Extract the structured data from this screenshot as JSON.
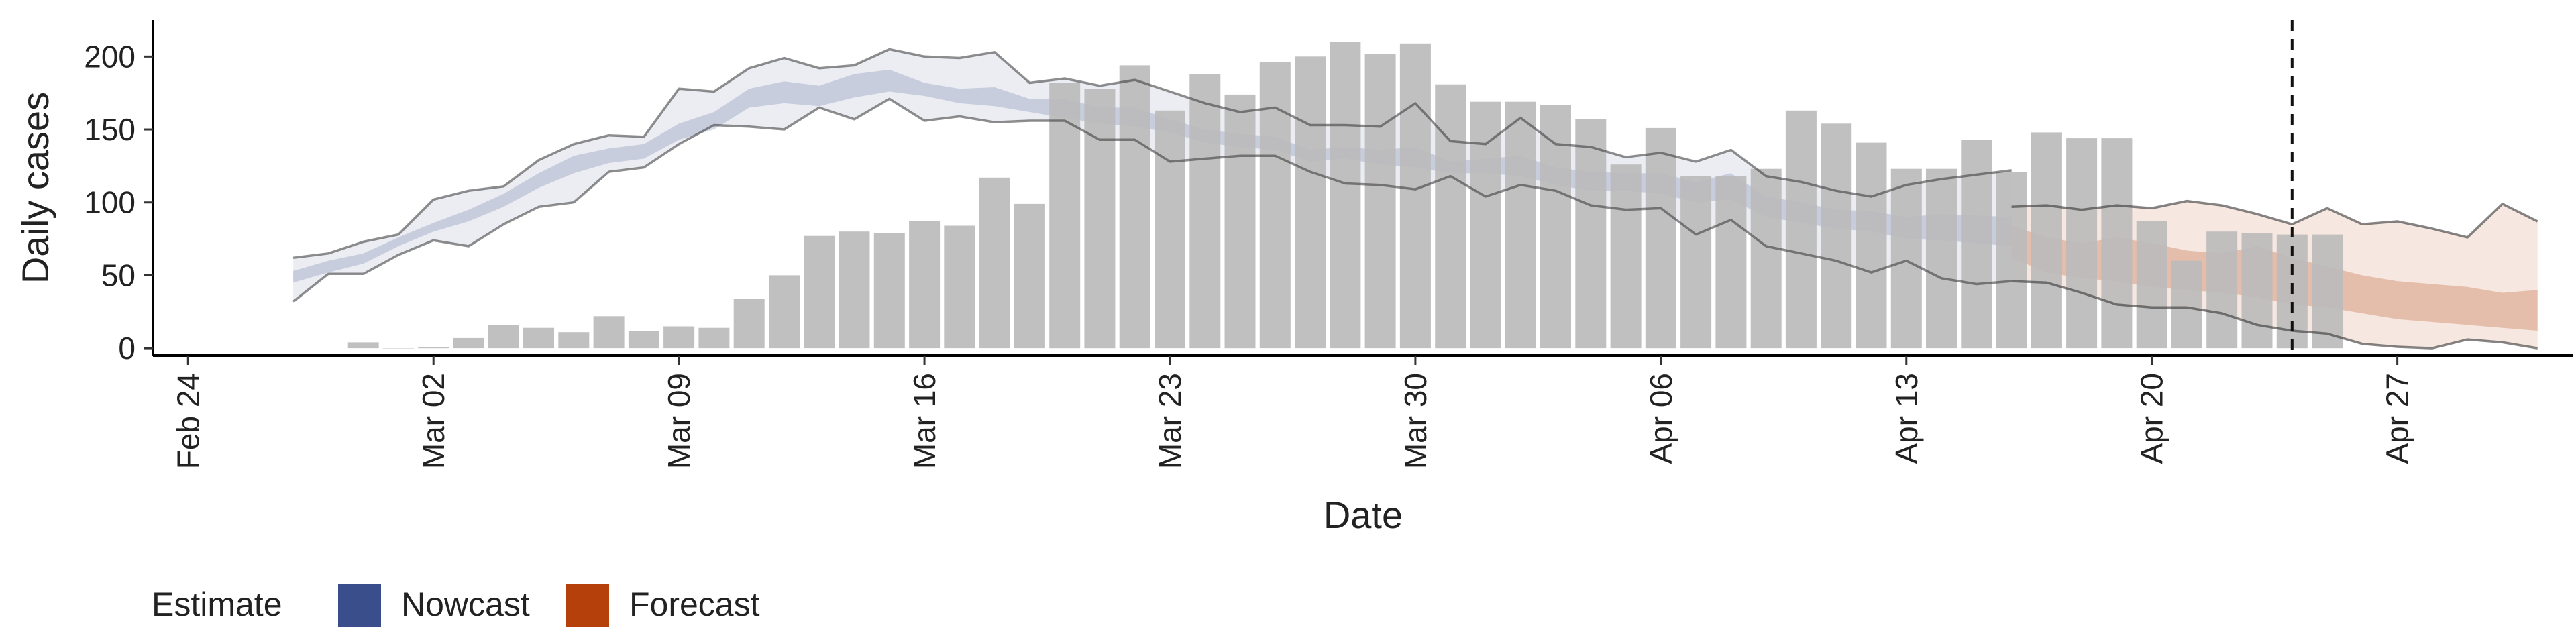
{
  "chart_data": {
    "type": "bar",
    "title": "",
    "xlabel": "Date",
    "ylabel": "Daily cases",
    "ylim": [
      -5,
      225
    ],
    "y_ticks": [
      0,
      50,
      100,
      150,
      200
    ],
    "x_range": [
      "2020-02-23",
      "2020-05-02"
    ],
    "x_ticks": [
      {
        "date": "2020-02-24",
        "label": "Feb 24"
      },
      {
        "date": "2020-03-02",
        "label": "Mar 02"
      },
      {
        "date": "2020-03-09",
        "label": "Mar 09"
      },
      {
        "date": "2020-03-16",
        "label": "Mar 16"
      },
      {
        "date": "2020-03-23",
        "label": "Mar 23"
      },
      {
        "date": "2020-03-30",
        "label": "Mar 30"
      },
      {
        "date": "2020-04-06",
        "label": "Apr 06"
      },
      {
        "date": "2020-04-13",
        "label": "Apr 13"
      },
      {
        "date": "2020-04-20",
        "label": "Apr 20"
      },
      {
        "date": "2020-04-27",
        "label": "Apr 27"
      }
    ],
    "grid": false,
    "bars": {
      "start_date": "2020-02-29",
      "values": [
        4,
        0,
        1,
        7,
        16,
        14,
        11,
        22,
        12,
        15,
        14,
        34,
        50,
        77,
        80,
        79,
        87,
        84,
        117,
        99,
        182,
        178,
        194,
        163,
        188,
        174,
        196,
        200,
        210,
        202,
        209,
        181,
        169,
        169,
        167,
        157,
        126,
        151,
        118,
        118,
        123,
        163,
        154,
        141,
        123,
        123,
        143,
        121,
        148,
        144,
        144,
        87,
        60,
        80,
        79,
        78,
        78
      ],
      "color": "#bbbbbb"
    },
    "estimate_dates": {
      "nowcast_start": "2020-02-27",
      "forecast_start": "2020-04-16",
      "end": "2020-04-29"
    },
    "nowcast": {
      "name": "Nowcast",
      "color": "#3a4e8c",
      "outer_upper": [
        62,
        65,
        73,
        78,
        102,
        108,
        111,
        129,
        140,
        146,
        145,
        178,
        176,
        192,
        199,
        192,
        194,
        205,
        200,
        199,
        203,
        182,
        185,
        180,
        184,
        176,
        168,
        162,
        165,
        153,
        153,
        152,
        168,
        142,
        140,
        158,
        140,
        138,
        131,
        134,
        128,
        136,
        118,
        114,
        108,
        104,
        112,
        116,
        119,
        122
      ],
      "inner_upper": [
        53,
        60,
        65,
        76,
        86,
        95,
        106,
        120,
        132,
        137,
        140,
        154,
        162,
        178,
        183,
        180,
        188,
        191,
        182,
        178,
        179,
        171,
        171,
        165,
        165,
        157,
        150,
        147,
        145,
        136,
        138,
        136,
        138,
        128,
        130,
        132,
        124,
        121,
        120,
        120,
        114,
        120,
        104,
        100,
        95,
        94,
        90,
        92,
        91,
        90
      ],
      "inner_lower": [
        45,
        52,
        58,
        70,
        80,
        87,
        97,
        110,
        120,
        127,
        130,
        143,
        150,
        165,
        168,
        166,
        172,
        176,
        173,
        168,
        166,
        162,
        158,
        154,
        152,
        148,
        141,
        138,
        136,
        128,
        130,
        126,
        124,
        120,
        120,
        118,
        112,
        108,
        108,
        106,
        100,
        102,
        90,
        86,
        82,
        80,
        75,
        74,
        72,
        70
      ],
      "outer_lower": [
        32,
        51,
        51,
        64,
        74,
        70,
        85,
        97,
        100,
        121,
        124,
        140,
        153,
        152,
        150,
        165,
        157,
        171,
        156,
        159,
        155,
        156,
        156,
        143,
        143,
        128,
        130,
        132,
        132,
        121,
        113,
        112,
        109,
        118,
        104,
        112,
        108,
        98,
        95,
        96,
        78,
        88,
        70,
        65,
        60,
        52,
        60,
        48,
        44,
        46
      ]
    },
    "forecast": {
      "name": "Forecast",
      "color": "#b5400c",
      "outer_upper": [
        97,
        98,
        95,
        98,
        96,
        101,
        98,
        92,
        85,
        96,
        85,
        87,
        82,
        76,
        99,
        87
      ],
      "inner_upper": [
        84,
        76,
        72,
        76,
        72,
        67,
        65,
        70,
        62,
        56,
        50,
        46,
        44,
        42,
        38,
        40
      ],
      "inner_lower": [
        62,
        52,
        48,
        46,
        42,
        40,
        38,
        35,
        30,
        28,
        24,
        20,
        18,
        16,
        14,
        12
      ],
      "outer_lower": [
        46,
        45,
        38,
        30,
        28,
        28,
        24,
        16,
        12,
        10,
        3,
        1,
        0,
        6,
        4,
        0
      ]
    },
    "vline": {
      "date": "2020-04-24",
      "style": "dashed"
    },
    "legend": {
      "position": "bottom-left",
      "title": "Estimate",
      "entries": [
        {
          "label": "Nowcast",
          "color": "#3a4e8c"
        },
        {
          "label": "Forecast",
          "color": "#b5400c"
        }
      ]
    }
  }
}
